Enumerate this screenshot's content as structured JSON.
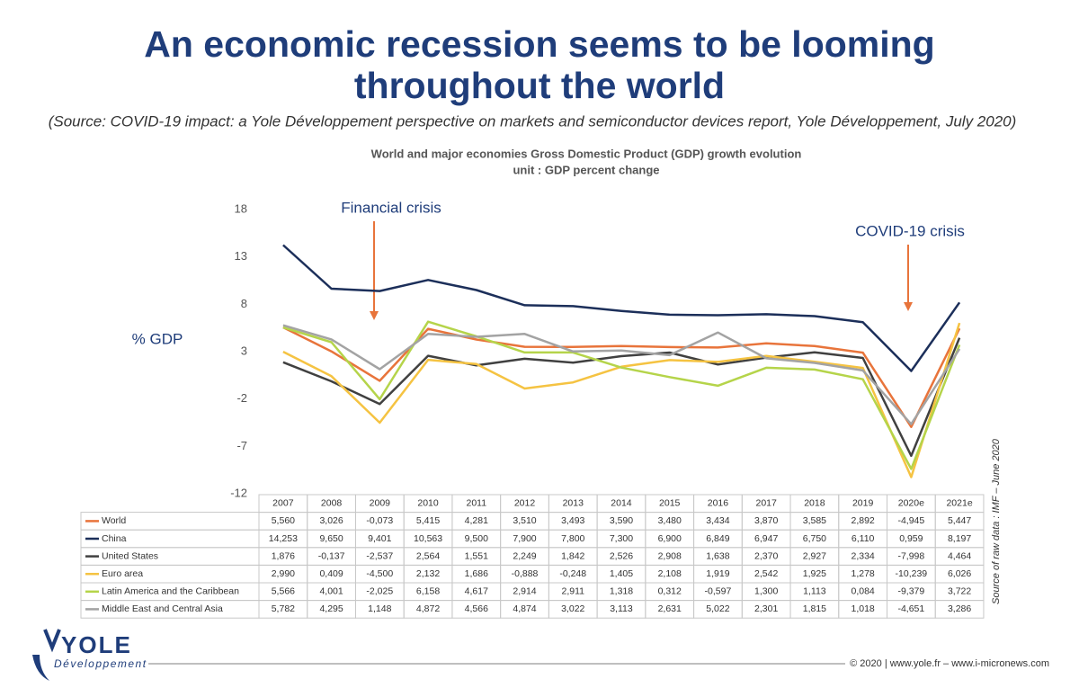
{
  "header": {
    "title_lines": [
      "An economic recession seems to be looming",
      "throughout the world"
    ],
    "source": "(Source: COVID-19 impact: a Yole Développement perspective on markets and semiconductor devices report, Yole Développement, July 2020)"
  },
  "chart_data": {
    "type": "line",
    "title": "World and major economies Gross Domestic Product (GDP) growth evolution",
    "subtitle": "unit : GDP percent change",
    "y_label": "% GDP",
    "annotations": [
      "Financial crisis",
      "COVID-19 crisis"
    ],
    "source_note": "Source of raw data : IMF – June 2020",
    "ylim": [
      -12,
      18
    ],
    "yticks": [
      18,
      13,
      8,
      3,
      -2,
      -7,
      -12
    ],
    "grid": false,
    "categories": [
      "2007",
      "2008",
      "2009",
      "2010",
      "2011",
      "2012",
      "2013",
      "2014",
      "2015",
      "2016",
      "2017",
      "2018",
      "2019",
      "2020e",
      "2021e"
    ],
    "series": [
      {
        "name": "World",
        "color": "#e8743b",
        "values": [
          5.56,
          3.026,
          -0.073,
          5.415,
          4.281,
          3.51,
          3.493,
          3.59,
          3.48,
          3.434,
          3.87,
          3.585,
          2.892,
          -4.945,
          5.447
        ],
        "value_labels": [
          "5,560",
          "3,026",
          "-0,073",
          "5,415",
          "4,281",
          "3,510",
          "3,493",
          "3,590",
          "3,480",
          "3,434",
          "3,870",
          "3,585",
          "2,892",
          "-4,945",
          "5,447"
        ]
      },
      {
        "name": "China",
        "color": "#1c2f5a",
        "values": [
          14.253,
          9.65,
          9.401,
          10.563,
          9.5,
          7.9,
          7.8,
          7.3,
          6.9,
          6.849,
          6.947,
          6.75,
          6.11,
          0.959,
          8.197
        ],
        "value_labels": [
          "14,253",
          "9,650",
          "9,401",
          "10,563",
          "9,500",
          "7,900",
          "7,800",
          "7,300",
          "6,900",
          "6,849",
          "6,947",
          "6,750",
          "6,110",
          "0,959",
          "8,197"
        ]
      },
      {
        "name": "United States",
        "color": "#404040",
        "values": [
          1.876,
          -0.137,
          -2.537,
          2.564,
          1.551,
          2.249,
          1.842,
          2.526,
          2.908,
          1.638,
          2.37,
          2.927,
          2.334,
          -7.998,
          4.464
        ],
        "value_labels": [
          "1,876",
          "-0,137",
          "-2,537",
          "2,564",
          "1,551",
          "2,249",
          "1,842",
          "2,526",
          "2,908",
          "1,638",
          "2,370",
          "2,927",
          "2,334",
          "-7,998",
          "4,464"
        ]
      },
      {
        "name": "Euro area",
        "color": "#f5c342",
        "values": [
          2.99,
          0.409,
          -4.5,
          2.132,
          1.686,
          -0.888,
          -0.248,
          1.405,
          2.108,
          1.919,
          2.542,
          1.925,
          1.278,
          -10.239,
          6.026
        ],
        "value_labels": [
          "2,990",
          "0,409",
          "-4,500",
          "2,132",
          "1,686",
          "-0,888",
          "-0,248",
          "1,405",
          "2,108",
          "1,919",
          "2,542",
          "1,925",
          "1,278",
          "-10,239",
          "6,026"
        ]
      },
      {
        "name": "Latin America and the Caribbean",
        "color": "#b5d44a",
        "values": [
          5.566,
          4.001,
          -2.025,
          6.158,
          4.617,
          2.914,
          2.911,
          1.318,
          0.312,
          -0.597,
          1.3,
          1.113,
          0.084,
          -9.379,
          3.722
        ],
        "value_labels": [
          "5,566",
          "4,001",
          "-2,025",
          "6,158",
          "4,617",
          "2,914",
          "2,911",
          "1,318",
          "0,312",
          "-0,597",
          "1,300",
          "1,113",
          "0,084",
          "-9,379",
          "3,722"
        ]
      },
      {
        "name": "Middle East and Central Asia",
        "color": "#a3a3a3",
        "values": [
          5.782,
          4.295,
          1.148,
          4.872,
          4.566,
          4.874,
          3.022,
          3.113,
          2.631,
          5.022,
          2.301,
          1.815,
          1.018,
          -4.651,
          3.286
        ],
        "value_labels": [
          "5,782",
          "4,295",
          "1,148",
          "4,872",
          "4,566",
          "4,874",
          "3,022",
          "3,113",
          "2,631",
          "5,022",
          "2,301",
          "1,815",
          "1,018",
          "-4,651",
          "3,286"
        ]
      }
    ]
  },
  "logo": {
    "name": "YOLE",
    "tagline": "Développement"
  },
  "footer": "© 2020 | www.yole.fr – www.i-micronews.com"
}
